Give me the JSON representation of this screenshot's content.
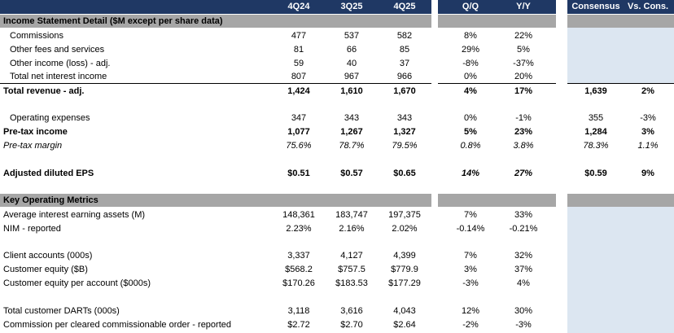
{
  "header": {
    "columns": [
      "4Q24",
      "3Q25",
      "4Q25"
    ],
    "change_columns": [
      "Q/Q",
      "Y/Y"
    ],
    "consensus_columns": [
      "Consensus",
      "Vs. Cons."
    ]
  },
  "sections": {
    "income": "Income Statement Detail ($M except per share data)",
    "metrics": "Key Operating Metrics"
  },
  "rows": [
    {
      "label": "Commissions",
      "indent": true,
      "values": [
        "477",
        "537",
        "582"
      ],
      "changes": [
        "8%",
        "22%"
      ],
      "consensus": [
        "",
        ""
      ]
    },
    {
      "label": "Other fees and services",
      "indent": true,
      "values": [
        "81",
        "66",
        "85"
      ],
      "changes": [
        "29%",
        "5%"
      ],
      "consensus": [
        "",
        ""
      ]
    },
    {
      "label": "Other income (loss) - adj.",
      "indent": true,
      "values": [
        "59",
        "40",
        "37"
      ],
      "changes": [
        "-8%",
        "-37%"
      ],
      "consensus": [
        "",
        ""
      ]
    },
    {
      "label": "Total net interest income",
      "indent": true,
      "values": [
        "807",
        "967",
        "966"
      ],
      "changes": [
        "0%",
        "20%"
      ],
      "consensus": [
        "",
        ""
      ]
    },
    {
      "label": "Total revenue - adj.",
      "bold": true,
      "values": [
        "1,424",
        "1,610",
        "1,670"
      ],
      "changes": [
        "4%",
        "17%"
      ],
      "consensus": [
        "1,639",
        "2%"
      ]
    },
    {
      "label": "Operating expenses",
      "indent": true,
      "values": [
        "347",
        "343",
        "343"
      ],
      "changes": [
        "0%",
        "-1%"
      ],
      "consensus": [
        "355",
        "-3%"
      ]
    },
    {
      "label": "Pre-tax income",
      "bold": true,
      "values": [
        "1,077",
        "1,267",
        "1,327"
      ],
      "changes": [
        "5%",
        "23%"
      ],
      "consensus": [
        "1,284",
        "3%"
      ]
    },
    {
      "label": "Pre-tax margin",
      "italic": true,
      "values": [
        "75.6%",
        "78.7%",
        "79.5%"
      ],
      "changes": [
        "0.8%",
        "3.8%"
      ],
      "consensus": [
        "78.3%",
        "1.1%"
      ]
    },
    {
      "label": "Adjusted diluted EPS",
      "bold": true,
      "values": [
        "$0.51",
        "$0.57",
        "$0.65"
      ],
      "changes": [
        "14%",
        "27%"
      ],
      "consensus": [
        "$0.59",
        "9%"
      ]
    },
    {
      "label": "Average interest earning assets (M)",
      "values": [
        "148,361",
        "183,747",
        "197,375"
      ],
      "changes": [
        "7%",
        "33%"
      ],
      "consensus": [
        "",
        ""
      ]
    },
    {
      "label": "NIM - reported",
      "values": [
        "2.23%",
        "2.16%",
        "2.02%"
      ],
      "changes": [
        "-0.14%",
        "-0.21%"
      ],
      "consensus": [
        "",
        ""
      ]
    },
    {
      "label": "Client accounts (000s)",
      "values": [
        "3,337",
        "4,127",
        "4,399"
      ],
      "changes": [
        "7%",
        "32%"
      ],
      "consensus": [
        "",
        ""
      ]
    },
    {
      "label": "Customer equity ($B)",
      "values": [
        "$568.2",
        "$757.5",
        "$779.9"
      ],
      "changes": [
        "3%",
        "37%"
      ],
      "consensus": [
        "",
        ""
      ]
    },
    {
      "label": "Customer equity per account ($000s)",
      "values": [
        "$170.26",
        "$183.53",
        "$177.29"
      ],
      "changes": [
        "-3%",
        "4%"
      ],
      "consensus": [
        "",
        ""
      ]
    },
    {
      "label": "Total customer DARTs (000s)",
      "values": [
        "3,118",
        "3,616",
        "4,043"
      ],
      "changes": [
        "12%",
        "30%"
      ],
      "consensus": [
        "",
        ""
      ]
    },
    {
      "label": "Commission per cleared commissionable order - reported",
      "values": [
        "$2.72",
        "$2.70",
        "$2.64"
      ],
      "changes": [
        "-2%",
        "-3%"
      ],
      "consensus": [
        "",
        ""
      ]
    }
  ]
}
